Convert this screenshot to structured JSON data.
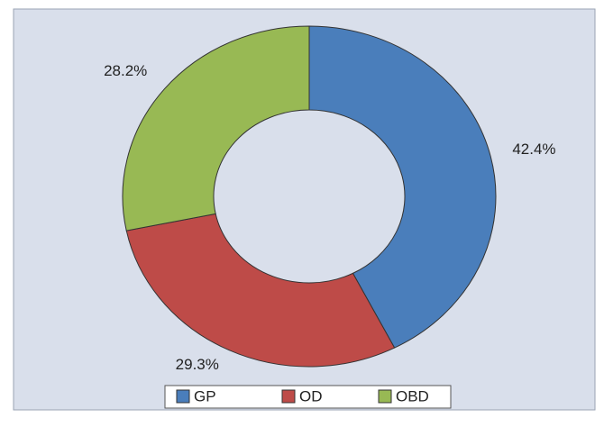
{
  "chart_data": {
    "type": "donut",
    "categories": [
      "GP",
      "OD",
      "OBD"
    ],
    "values": [
      42.4,
      29.3,
      28.2
    ],
    "value_labels": [
      "42.4%",
      "29.3%",
      "28.2%"
    ],
    "colors": [
      "#4a7ebb",
      "#be4b48",
      "#98b954"
    ],
    "legend": "bottom"
  }
}
